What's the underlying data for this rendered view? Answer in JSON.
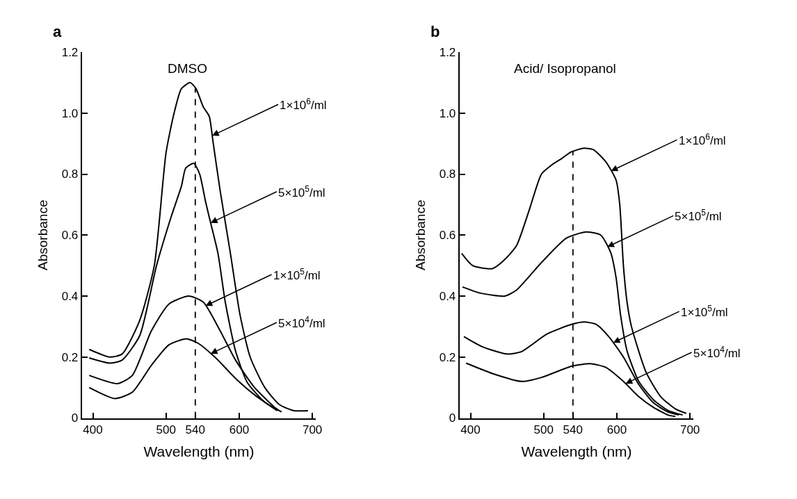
{
  "chart_data": [
    {
      "type": "line",
      "title": "a",
      "subtitle": "DMSO",
      "xlabel": "Wavelength (nm)",
      "ylabel": "Absorbance",
      "xlim": [
        385,
        705
      ],
      "xticks": [
        400,
        500,
        540,
        600,
        700
      ],
      "ylim": [
        0,
        1.2
      ],
      "yticks": [
        0,
        0.2,
        0.4,
        0.6,
        0.8,
        {
          "value": 1.0,
          "label": "1.0"
        },
        1.2
      ],
      "marker": "none",
      "line_style": "solid",
      "ref_lines": [
        {
          "axis": "x",
          "value": 540,
          "color": "#000000",
          "line_style": "dashed"
        }
      ],
      "annotations": [
        {
          "text": "1×10$^{6}$/ml",
          "x": 563,
          "y": 0.926
        },
        {
          "text": "5×10$^{5}$/ml",
          "x": 561,
          "y": 0.64
        },
        {
          "text": "1×10$^{5}$/ml",
          "x": 554,
          "y": 0.368
        },
        {
          "text": "5×10$^{4}$/ml",
          "x": 561,
          "y": 0.211
        }
      ],
      "series": [
        {
          "color": "#000000",
          "x": [
            395,
            423,
            440,
            464,
            484,
            500,
            511,
            521,
            533,
            541,
            551,
            559,
            564,
            574,
            588,
            601,
            615,
            635,
            655,
            675,
            694
          ],
          "values": [
            0.225,
            0.2,
            0.21,
            0.32,
            0.5,
            0.87,
            1.0,
            1.08,
            1.1,
            1.08,
            1.02,
            0.99,
            0.91,
            0.745,
            0.54,
            0.34,
            0.2,
            0.1,
            0.044,
            0.024,
            0.024
          ]
        },
        {
          "color": "#000000",
          "x": [
            395,
            423,
            440,
            464,
            487,
            507,
            521,
            527,
            538,
            546,
            554,
            561,
            571,
            581,
            595,
            611,
            635,
            658
          ],
          "values": [
            0.197,
            0.18,
            0.19,
            0.27,
            0.5,
            0.66,
            0.76,
            0.82,
            0.835,
            0.8,
            0.71,
            0.64,
            0.54,
            0.38,
            0.22,
            0.117,
            0.052,
            0.02
          ]
        },
        {
          "color": "#000000",
          "x": [
            395,
            434,
            454,
            480,
            504,
            531,
            551,
            574,
            595,
            621,
            648,
            655
          ],
          "values": [
            0.14,
            0.113,
            0.14,
            0.286,
            0.374,
            0.4,
            0.38,
            0.286,
            0.19,
            0.1,
            0.036,
            0.024
          ]
        },
        {
          "color": "#000000",
          "x": [
            395,
            430,
            454,
            480,
            504,
            528,
            544,
            568,
            595,
            621,
            652
          ],
          "values": [
            0.1,
            0.064,
            0.085,
            0.173,
            0.24,
            0.26,
            0.245,
            0.197,
            0.13,
            0.076,
            0.024
          ]
        }
      ]
    },
    {
      "type": "line",
      "title": "b",
      "subtitle": "Acid/ Isopropanol",
      "xlabel": "Wavelength (nm)",
      "ylabel": "Absorbance",
      "xlim": [
        385,
        705
      ],
      "xticks": [
        400,
        500,
        540,
        600,
        700
      ],
      "ylim": [
        0,
        1.2
      ],
      "yticks": [
        0,
        0.2,
        0.4,
        0.6,
        0.8,
        {
          "value": 1.0,
          "label": "1.0"
        },
        1.2
      ],
      "marker": "none",
      "line_style": "solid",
      "ref_lines": [
        {
          "axis": "x",
          "value": 540,
          "color": "#000000",
          "line_style": "dashed"
        }
      ],
      "annotations": [
        {
          "text": "1×10$^{6}$/ml",
          "x": 592,
          "y": 0.81
        },
        {
          "text": "5×10$^{5}$/ml",
          "x": 587,
          "y": 0.561
        },
        {
          "text": "1×10$^{5}$/ml",
          "x": 595,
          "y": 0.247
        },
        {
          "text": "5×10$^{4}$/ml",
          "x": 612,
          "y": 0.113
        }
      ],
      "series": [
        {
          "color": "#000000",
          "x": [
            388,
            403,
            430,
            447,
            463,
            480,
            497,
            511,
            524,
            538,
            555,
            568,
            585,
            599,
            604,
            609,
            614,
            620,
            640,
            660,
            680,
            695
          ],
          "values": [
            0.54,
            0.5,
            0.49,
            0.52,
            0.566,
            0.68,
            0.8,
            0.83,
            0.85,
            0.873,
            0.885,
            0.88,
            0.84,
            0.78,
            0.7,
            0.5,
            0.38,
            0.3,
            0.15,
            0.07,
            0.03,
            0.015
          ]
        },
        {
          "color": "#000000",
          "x": [
            389,
            413,
            447,
            463,
            497,
            531,
            558,
            578,
            592,
            599,
            605,
            614,
            630,
            650,
            670,
            690
          ],
          "values": [
            0.43,
            0.41,
            0.4,
            0.42,
            0.51,
            0.59,
            0.61,
            0.6,
            0.54,
            0.46,
            0.34,
            0.22,
            0.12,
            0.06,
            0.025,
            0.01
          ]
        },
        {
          "color": "#000000",
          "x": [
            391,
            416,
            450,
            470,
            504,
            538,
            555,
            572,
            589,
            609,
            630,
            650,
            670,
            685
          ],
          "values": [
            0.267,
            0.234,
            0.21,
            0.218,
            0.275,
            0.307,
            0.315,
            0.307,
            0.267,
            0.2,
            0.11,
            0.05,
            0.02,
            0.01
          ]
        },
        {
          "color": "#000000",
          "x": [
            394,
            430,
            470,
            497,
            538,
            565,
            585,
            609,
            630,
            650,
            670,
            680
          ],
          "values": [
            0.18,
            0.146,
            0.12,
            0.133,
            0.17,
            0.178,
            0.166,
            0.12,
            0.07,
            0.035,
            0.01,
            0.005
          ]
        }
      ]
    }
  ]
}
